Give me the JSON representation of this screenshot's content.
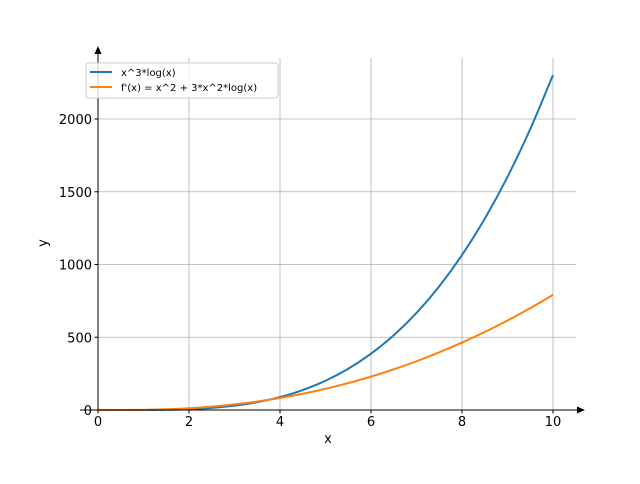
{
  "chart_data": {
    "type": "line",
    "title": "",
    "xlabel": "x",
    "ylabel": "y",
    "xlim": [
      0,
      10.5
    ],
    "ylim": [
      0,
      2400
    ],
    "grid": true,
    "legend_placement": "top-left",
    "x_ticks": [
      "0",
      "2",
      "4",
      "6",
      "8",
      "10"
    ],
    "x_tick_values": [
      0,
      2,
      4,
      6,
      8,
      10
    ],
    "y_ticks": [
      "0",
      "500",
      "1000",
      "1500",
      "2000"
    ],
    "y_tick_values": [
      0,
      500,
      1000,
      1500,
      2000
    ],
    "x": [
      0,
      0.5,
      1,
      1.5,
      2,
      2.5,
      3,
      3.5,
      4,
      4.5,
      5,
      5.5,
      6,
      6.5,
      7,
      7.5,
      8,
      8.5,
      9,
      9.5,
      10
    ],
    "series": [
      {
        "name": "x^3*log(x)",
        "color": "#1f77b4",
        "values": [
          0,
          -0.09,
          0,
          1.37,
          5.55,
          14.32,
          29.66,
          53.71,
          88.72,
          137.06,
          201.18,
          283.62,
          387.02,
          514.04,
          667.44,
          850.04,
          1064.66,
          1314.29,
          1601.79,
          1930.21,
          2302.59
        ]
      },
      {
        "name": "f'(x) = x^2 + 3*x^2*log(x)",
        "color": "#ff7f0e",
        "values": [
          0,
          -0.27,
          1,
          4.99,
          12.32,
          23.43,
          38.66,
          58.29,
          82.54,
          111.63,
          145.71,
          184.95,
          229.51,
          279.5,
          335.05,
          396.26,
          463.25,
          536.12,
          614.93,
          699.79,
          790.78
        ]
      }
    ]
  }
}
